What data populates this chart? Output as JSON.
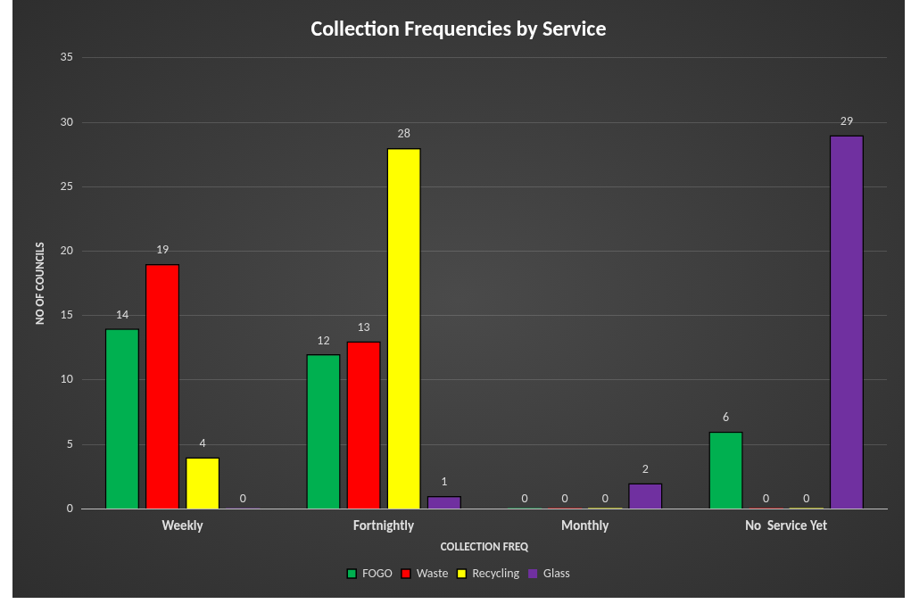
{
  "chart_data": {
    "type": "bar",
    "title": "Collection Frequencies by Service",
    "xlabel": "COLLECTION FREQ",
    "ylabel": "NO OF COUNCILS",
    "categories": [
      "Weekly",
      "Fortnightly",
      "Monthly",
      "No  Service Yet"
    ],
    "series": [
      {
        "name": "FOGO",
        "color": "#00b050",
        "values": [
          14,
          12,
          0,
          6
        ]
      },
      {
        "name": "Waste",
        "color": "#ff0000",
        "values": [
          19,
          13,
          0,
          0
        ]
      },
      {
        "name": "Recycling",
        "color": "#ffff00",
        "values": [
          4,
          28,
          0,
          0
        ]
      },
      {
        "name": "Glass",
        "color": "#7030a0",
        "values": [
          0,
          1,
          2,
          29
        ]
      }
    ],
    "ylim": [
      0,
      35
    ],
    "yticks": [
      0,
      5,
      10,
      15,
      20,
      25,
      30,
      35
    ],
    "grid": "y",
    "legend": "bottom",
    "data_labels": true
  }
}
